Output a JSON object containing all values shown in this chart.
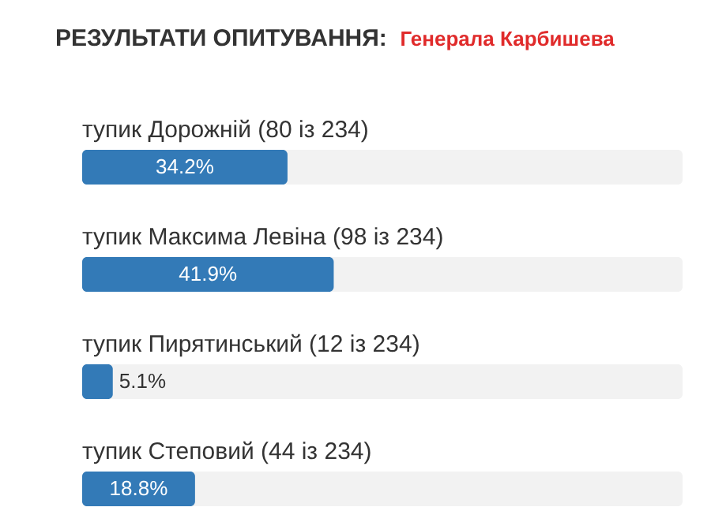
{
  "chart_data": {
    "type": "bar",
    "orientation": "horizontal",
    "title": "РЕЗУЛЬТАТИ ОПИТУВАННЯ:",
    "subtitle": "Генерала Карбишева",
    "categories": [
      "тупик Дорожній (80 із 234)",
      "тупик Максима Левіна (98 із 234)",
      "тупик Пирятинський (12 із 234)",
      "тупик Степовий (44 із 234)"
    ],
    "values": [
      34.2,
      41.9,
      5.1,
      18.8
    ],
    "value_labels": [
      "34.2%",
      "41.9%",
      "5.1%",
      "18.8%"
    ],
    "color": "#337ab7",
    "xlim": [
      0,
      100
    ]
  }
}
